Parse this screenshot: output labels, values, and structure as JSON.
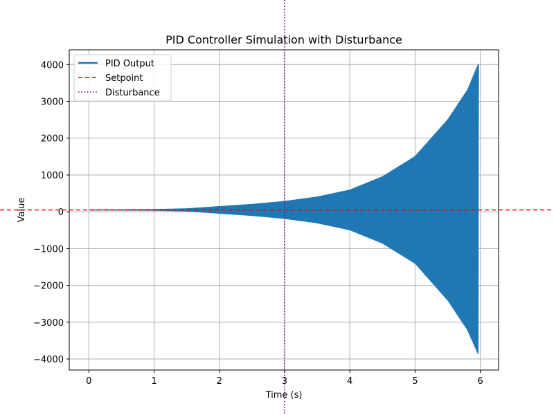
{
  "chart_data": {
    "type": "line",
    "title": "PID Controller Simulation with Disturbance",
    "xlabel": "Time (s)",
    "ylabel": "Value",
    "xlim": [
      -0.3,
      6.28
    ],
    "ylim": [
      -4300,
      4400
    ],
    "x_ticks": [
      0,
      1,
      2,
      3,
      4,
      5,
      6
    ],
    "y_ticks": [
      -4000,
      -3000,
      -2000,
      -1000,
      0,
      1000,
      2000,
      3000,
      4000
    ],
    "y_tick_labels": [
      "−4000",
      "−3000",
      "−2000",
      "−1000",
      "0",
      "1000",
      "2000",
      "3000",
      "4000"
    ],
    "grid": true,
    "legend_position": "top-left",
    "series": [
      {
        "name": "PID Output",
        "style": "solid",
        "color": "#1f77b4",
        "envelope": {
          "x": [
            0,
            0.5,
            1,
            1.5,
            2,
            2.5,
            3,
            3.5,
            4,
            4.5,
            5,
            5.5,
            5.8,
            5.97
          ],
          "upper": [
            50,
            55,
            60,
            80,
            140,
            200,
            280,
            400,
            590,
            950,
            1500,
            2500,
            3300,
            4020
          ],
          "lower": [
            50,
            45,
            40,
            20,
            -40,
            -100,
            -180,
            -300,
            -490,
            -850,
            -1400,
            -2400,
            -3200,
            -3880
          ]
        }
      },
      {
        "name": "Setpoint",
        "style": "dashed",
        "color": "#ff0000",
        "y": 50
      },
      {
        "name": "Disturbance",
        "style": "dotted",
        "color": "#800080",
        "x": 3
      }
    ]
  }
}
